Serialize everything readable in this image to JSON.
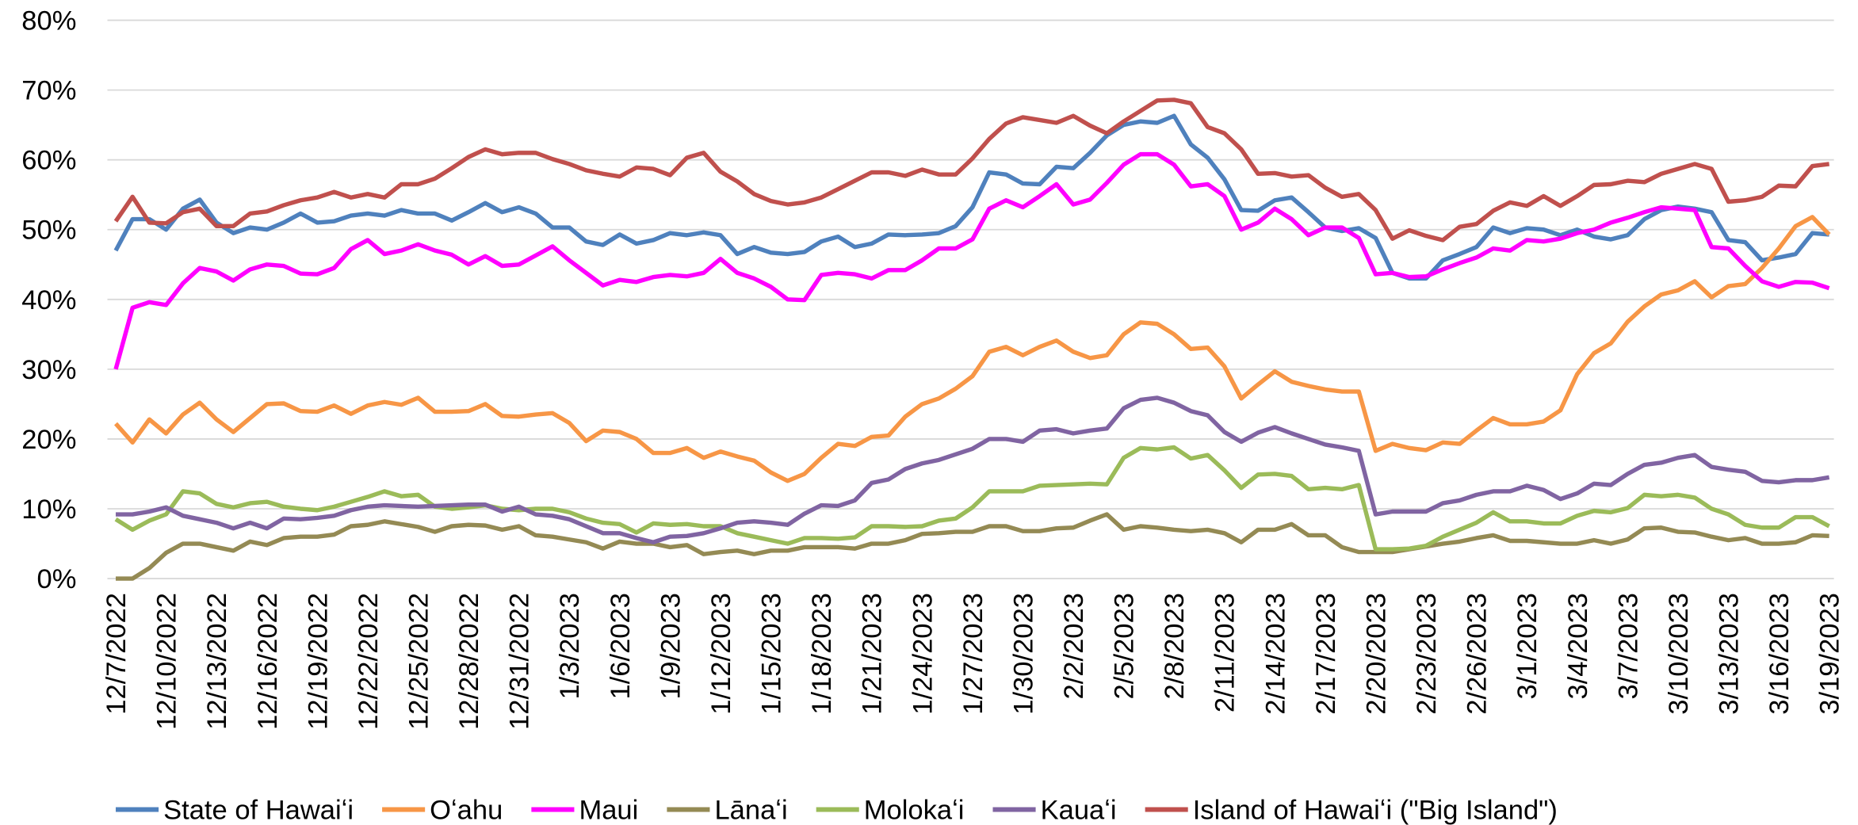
{
  "chart_data": {
    "type": "line",
    "categories": [
      "12/7/2022",
      null,
      null,
      "12/10/2022",
      null,
      null,
      "12/13/2022",
      null,
      null,
      "12/16/2022",
      null,
      null,
      "12/19/2022",
      null,
      null,
      "12/22/2022",
      null,
      null,
      "12/25/2022",
      null,
      null,
      "12/28/2022",
      null,
      null,
      "12/31/2022",
      null,
      null,
      "1/3/2023",
      null,
      null,
      "1/6/2023",
      null,
      null,
      "1/9/2023",
      null,
      null,
      "1/12/2023",
      null,
      null,
      "1/15/2023",
      null,
      null,
      "1/18/2023",
      null,
      null,
      "1/21/2023",
      null,
      null,
      "1/24/2023",
      null,
      null,
      "1/27/2023",
      null,
      null,
      "1/30/2023",
      null,
      null,
      "2/2/2023",
      null,
      null,
      "2/5/2023",
      null,
      null,
      "2/8/2023",
      null,
      null,
      "2/11/2023",
      null,
      null,
      "2/14/2023",
      null,
      null,
      "2/17/2023",
      null,
      null,
      "2/20/2023",
      null,
      null,
      "2/23/2023",
      null,
      null,
      "2/26/2023",
      null,
      null,
      "3/1/2023",
      null,
      null,
      "3/4/2023",
      null,
      null,
      "3/7/2023",
      null,
      null,
      "3/10/2023",
      null,
      null,
      "3/13/2023",
      null,
      null,
      "3/16/2023",
      null,
      null,
      "3/19/2023"
    ],
    "series": [
      {
        "name": "State of Hawaiʻi",
        "color": "#4f81bd",
        "values": [
          47,
          51.5,
          51.5,
          50,
          53,
          54.3,
          51,
          49.5,
          50.3,
          50,
          51,
          52.3,
          51,
          51.2,
          52,
          52.3,
          52,
          52.8,
          52.3,
          52.3,
          51.3,
          52.5,
          53.8,
          52.5,
          53.2,
          52.3,
          50.3,
          50.3,
          48.3,
          47.8,
          49.3,
          48,
          48.5,
          49.5,
          49.2,
          49.6,
          49.2,
          46.5,
          47.5,
          46.7,
          46.5,
          46.8,
          48.3,
          49,
          47.5,
          48,
          49.3,
          49.2,
          49.3,
          49.5,
          50.5,
          53.2,
          58.2,
          57.9,
          56.6,
          56.5,
          59,
          58.8,
          61,
          63.5,
          65,
          65.5,
          65.3,
          66.3,
          62.2,
          60.3,
          57.2,
          52.8,
          52.7,
          54.2,
          54.6,
          52.5,
          50.3,
          49.8,
          50.2,
          48.8,
          43.8,
          43,
          43,
          45.6,
          46.5,
          47.5,
          50.3,
          49.5,
          50.2,
          50,
          49.2,
          50,
          49,
          48.6,
          49.2,
          51.5,
          52.8,
          53.3,
          53,
          52.5,
          48.5,
          48.2,
          45.6,
          46,
          46.5,
          49.5,
          49.3
        ]
      },
      {
        "name": "Oʻahu",
        "color": "#f79646",
        "values": [
          22.2,
          19.5,
          22.8,
          20.8,
          23.5,
          25.2,
          22.8,
          21,
          23,
          25,
          25.1,
          24,
          23.9,
          24.8,
          23.6,
          24.8,
          25.3,
          24.9,
          25.9,
          23.9,
          23.9,
          24,
          25,
          23.3,
          23.2,
          23.5,
          23.7,
          22.3,
          19.7,
          21.2,
          21,
          20,
          18,
          18,
          18.7,
          17.3,
          18.2,
          17.5,
          16.9,
          15.2,
          14,
          15,
          17.3,
          19.3,
          19,
          20.3,
          20.5,
          23.2,
          25,
          25.8,
          27.2,
          29,
          32.5,
          33.2,
          32,
          33.2,
          34.1,
          32.5,
          31.6,
          32,
          35,
          36.7,
          36.5,
          35,
          32.9,
          33.1,
          30.4,
          25.8,
          27.8,
          29.7,
          28.2,
          27.6,
          27.1,
          26.8,
          26.8,
          18.3,
          19.3,
          18.7,
          18.4,
          19.5,
          19.3,
          21.2,
          23,
          22.1,
          22.1,
          22.5,
          24.1,
          29.3,
          32.3,
          33.7,
          36.8,
          39,
          40.7,
          41.3,
          42.6,
          40.3,
          41.9,
          42.2,
          44.5,
          47.3,
          50.5,
          51.8,
          49.3
        ]
      },
      {
        "name": "Maui",
        "color": "#ff00ff",
        "values": [
          30,
          38.8,
          39.6,
          39.2,
          42.3,
          44.5,
          44,
          42.7,
          44.3,
          45,
          44.8,
          43.7,
          43.6,
          44.5,
          47.2,
          48.5,
          46.5,
          47,
          47.9,
          47,
          46.4,
          45,
          46.2,
          44.8,
          45,
          46.3,
          47.6,
          45.6,
          43.8,
          42,
          42.8,
          42.5,
          43.2,
          43.5,
          43.3,
          43.8,
          45.8,
          43.8,
          43,
          41.8,
          40,
          39.9,
          43.5,
          43.8,
          43.6,
          43,
          44.2,
          44.2,
          45.6,
          47.3,
          47.3,
          48.6,
          53,
          54.2,
          53.2,
          54.8,
          56.5,
          53.6,
          54.3,
          56.7,
          59.3,
          60.8,
          60.8,
          59.3,
          56.2,
          56.5,
          54.8,
          50,
          51,
          53,
          51.5,
          49.2,
          50.3,
          50.3,
          48.8,
          43.6,
          43.8,
          43.2,
          43.3,
          44.3,
          45.2,
          46,
          47.3,
          47,
          48.5,
          48.3,
          48.7,
          49.5,
          50,
          51,
          51.7,
          52.5,
          53.2,
          53,
          52.8,
          47.5,
          47.3,
          44.8,
          42.6,
          41.8,
          42.5,
          42.4,
          41.6
        ]
      },
      {
        "name": "Lānaʻi",
        "color": "#948a54",
        "values": [
          0,
          0,
          1.5,
          3.7,
          5,
          5,
          4.5,
          4,
          5.3,
          4.8,
          5.8,
          6,
          6,
          6.3,
          7.5,
          7.7,
          8.2,
          7.8,
          7.4,
          6.7,
          7.5,
          7.7,
          7.6,
          7,
          7.5,
          6.2,
          6,
          5.6,
          5.2,
          4.3,
          5.3,
          5,
          5,
          4.5,
          4.8,
          3.5,
          3.8,
          4,
          3.5,
          4,
          4,
          4.5,
          4.5,
          4.5,
          4.3,
          5,
          5,
          5.5,
          6.4,
          6.5,
          6.7,
          6.7,
          7.5,
          7.5,
          6.8,
          6.8,
          7.2,
          7.3,
          8.3,
          9.2,
          7,
          7.5,
          7.3,
          7,
          6.8,
          7,
          6.5,
          5.2,
          7,
          7,
          7.8,
          6.2,
          6.2,
          4.5,
          3.8,
          3.8,
          3.8,
          4.2,
          4.6,
          5,
          5.3,
          5.8,
          6.2,
          5.4,
          5.4,
          5.2,
          5,
          5,
          5.5,
          5,
          5.6,
          7.2,
          7.3,
          6.7,
          6.6,
          6,
          5.5,
          5.8,
          5,
          5,
          5.2,
          6.2,
          6.1
        ]
      },
      {
        "name": "Molokaʻi",
        "color": "#9bbb59",
        "values": [
          8.5,
          7,
          8.3,
          9.2,
          12.5,
          12.2,
          10.7,
          10.2,
          10.8,
          11,
          10.3,
          10,
          9.8,
          10.3,
          11,
          11.7,
          12.5,
          11.8,
          12,
          10.3,
          10,
          10.2,
          10.5,
          10,
          9.8,
          10,
          10,
          9.5,
          8.6,
          8,
          7.8,
          6.6,
          7.9,
          7.7,
          7.8,
          7.5,
          7.5,
          6.5,
          6,
          5.5,
          5,
          5.8,
          5.8,
          5.7,
          5.9,
          7.5,
          7.5,
          7.4,
          7.5,
          8.3,
          8.6,
          10.2,
          12.5,
          12.5,
          12.5,
          13.3,
          13.4,
          13.5,
          13.6,
          13.5,
          17.3,
          18.7,
          18.5,
          18.8,
          17.2,
          17.7,
          15.5,
          13,
          14.9,
          15,
          14.7,
          12.8,
          13,
          12.8,
          13.4,
          4.2,
          4.2,
          4.3,
          4.7,
          6,
          7,
          8,
          9.5,
          8.2,
          8.2,
          7.9,
          7.9,
          9,
          9.7,
          9.5,
          10.1,
          12,
          11.8,
          12,
          11.6,
          10,
          9.2,
          7.7,
          7.3,
          7.3,
          8.8,
          8.8,
          7.5
        ]
      },
      {
        "name": "Kauaʻi",
        "color": "#8064a2",
        "values": [
          9.2,
          9.2,
          9.6,
          10.2,
          9,
          8.5,
          8,
          7.2,
          8,
          7.2,
          8.6,
          8.5,
          8.7,
          9,
          9.8,
          10.3,
          10.5,
          10.4,
          10.3,
          10.4,
          10.5,
          10.6,
          10.6,
          9.6,
          10.3,
          9.2,
          9,
          8.5,
          7.5,
          6.5,
          6.5,
          5.8,
          5.2,
          6,
          6.1,
          6.5,
          7.2,
          8,
          8.2,
          8,
          7.7,
          9.3,
          10.5,
          10.4,
          11.2,
          13.7,
          14.2,
          15.7,
          16.5,
          17,
          17.8,
          18.6,
          20,
          20,
          19.6,
          21.2,
          21.4,
          20.8,
          21.2,
          21.5,
          24.4,
          25.6,
          25.9,
          25.2,
          24,
          23.4,
          21,
          19.6,
          20.9,
          21.7,
          20.8,
          20,
          19.2,
          18.8,
          18.3,
          9.2,
          9.6,
          9.6,
          9.6,
          10.8,
          11.2,
          12,
          12.5,
          12.5,
          13.3,
          12.7,
          11.4,
          12.2,
          13.6,
          13.4,
          15,
          16.3,
          16.6,
          17.3,
          17.7,
          16,
          15.6,
          15.3,
          14,
          13.8,
          14.1,
          14.1,
          14.5
        ]
      },
      {
        "name": "Island of Hawaiʻi (\"Big Island\")",
        "color": "#c0504d",
        "values": [
          51.2,
          54.7,
          51,
          50.9,
          52.5,
          53,
          50.5,
          50.5,
          52.3,
          52.6,
          53.5,
          54.2,
          54.6,
          55.4,
          54.6,
          55.1,
          54.6,
          56.5,
          56.5,
          57.3,
          58.8,
          60.4,
          61.5,
          60.8,
          61,
          61,
          60.1,
          59.4,
          58.5,
          58,
          57.6,
          58.9,
          58.7,
          57.8,
          60.3,
          61,
          58.3,
          56.9,
          55.1,
          54.1,
          53.6,
          53.9,
          54.6,
          55.8,
          57,
          58.2,
          58.2,
          57.7,
          58.6,
          57.9,
          57.9,
          60.2,
          63,
          65.2,
          66.1,
          65.7,
          65.3,
          66.3,
          64.9,
          63.8,
          65.5,
          67,
          68.5,
          68.6,
          68.1,
          64.7,
          63.8,
          61.5,
          58,
          58.1,
          57.6,
          57.8,
          56,
          54.7,
          55.1,
          52.8,
          48.7,
          49.9,
          49.1,
          48.5,
          50.4,
          50.8,
          52.7,
          53.9,
          53.4,
          54.8,
          53.4,
          54.8,
          56.4,
          56.5,
          57,
          56.8,
          58,
          58.7,
          59.4,
          58.7,
          54,
          54.2,
          54.7,
          56.3,
          56.2,
          59.1,
          59.4
        ]
      }
    ],
    "ylim": [
      0,
      80
    ],
    "yticks": [
      {
        "value": 0,
        "label": "0%"
      },
      {
        "value": 10,
        "label": "10%"
      },
      {
        "value": 20,
        "label": "20%"
      },
      {
        "value": 30,
        "label": "30%"
      },
      {
        "value": 40,
        "label": "40%"
      },
      {
        "value": 50,
        "label": "50%"
      },
      {
        "value": 60,
        "label": "60%"
      },
      {
        "value": 70,
        "label": "70%"
      },
      {
        "value": 80,
        "label": "80%"
      }
    ],
    "grid": true,
    "legend": "bottom"
  }
}
